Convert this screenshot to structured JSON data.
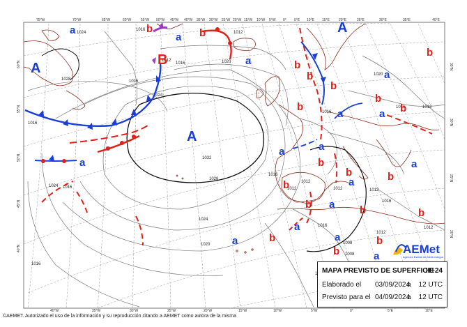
{
  "legend": {
    "title": "MAPA PREVISTO DE SUPERFICIE",
    "step": "H+24",
    "elaborated_label": "Elaborado el",
    "elaborated_date": "03/09/2024",
    "elaborated_sep": "a",
    "elaborated_time": "12 UTC",
    "valid_label": "Previsto para el",
    "valid_date": "04/09/2024",
    "valid_sep": "a",
    "valid_time": "12 UTC"
  },
  "logo": {
    "name": "AEMet",
    "subtitle": "Agencia Estatal de Meteorología"
  },
  "footer": "©AEMET. Autorizado el uso de la información y su reproducción citando a AEMET como autora de la misma",
  "longitudes_top": [
    "75°W",
    "70°W",
    "65°W",
    "60°W",
    "55°W",
    "50°W",
    "45°W",
    "40°W",
    "35°W",
    "30°W",
    "25°W",
    "20°W",
    "15°W",
    "10°W",
    "5°W",
    "0°",
    "5°E",
    "10°E",
    "15°E",
    "20°E",
    "25°E",
    "30°E",
    "35°E",
    "40°E"
  ],
  "longitudes_bottom": [
    "40°W",
    "35°W",
    "30°W",
    "25°W",
    "20°W",
    "15°W",
    "10°W",
    "5°W",
    "0°",
    "5°E",
    "10°E"
  ],
  "latitudes": [
    "60°N",
    "55°N",
    "50°N",
    "45°N",
    "40°N",
    "35°N",
    "30°N",
    "25°N",
    "20°N"
  ],
  "isobars": [
    "1024",
    "1016",
    "1012",
    "1012",
    "1016",
    "1016",
    "1020",
    "1024",
    "1028",
    "1032",
    "1028",
    "1024",
    "1016",
    "1016",
    "1012",
    "1012",
    "1012",
    "1012",
    "1016",
    "1012",
    "1016",
    "1020",
    "1016",
    "1012",
    "1008",
    "1008",
    "1016",
    "1012",
    "1024",
    "1016",
    "1020",
    "1016",
    "1012"
  ],
  "high_main": "A",
  "pressure_labels": [
    {
      "t": "A",
      "k": "high"
    },
    {
      "t": "A",
      "k": "high"
    },
    {
      "t": "B",
      "k": "low"
    },
    {
      "t": "a",
      "k": "high"
    },
    {
      "t": "a",
      "k": "high"
    },
    {
      "t": "a",
      "k": "high"
    },
    {
      "t": "a",
      "k": "high"
    },
    {
      "t": "a",
      "k": "high"
    },
    {
      "t": "a",
      "k": "high"
    },
    {
      "t": "a",
      "k": "high"
    },
    {
      "t": "a",
      "k": "high"
    },
    {
      "t": "a",
      "k": "high"
    },
    {
      "t": "a",
      "k": "high"
    },
    {
      "t": "a",
      "k": "high"
    },
    {
      "t": "a",
      "k": "high"
    },
    {
      "t": "a",
      "k": "high"
    },
    {
      "t": "a",
      "k": "high"
    },
    {
      "t": "a",
      "k": "high"
    },
    {
      "t": "a",
      "k": "high"
    },
    {
      "t": "b",
      "k": "low"
    },
    {
      "t": "b",
      "k": "low"
    },
    {
      "t": "b",
      "k": "low"
    },
    {
      "t": "b",
      "k": "low"
    },
    {
      "t": "b",
      "k": "low"
    },
    {
      "t": "b",
      "k": "low"
    },
    {
      "t": "b",
      "k": "low"
    },
    {
      "t": "b",
      "k": "low"
    },
    {
      "t": "b",
      "k": "low"
    },
    {
      "t": "b",
      "k": "low"
    },
    {
      "t": "b",
      "k": "low"
    },
    {
      "t": "b",
      "k": "low"
    },
    {
      "t": "b",
      "k": "low"
    },
    {
      "t": "b",
      "k": "low"
    },
    {
      "t": "b",
      "k": "low"
    },
    {
      "t": "b",
      "k": "low"
    },
    {
      "t": "b",
      "k": "low"
    },
    {
      "t": "b",
      "k": "low"
    },
    {
      "t": "b",
      "k": "low"
    }
  ],
  "colors": {
    "high": "#1a3fd6",
    "low": "#e0201a",
    "cold_front": "#1a3fd6",
    "warm_front": "#e0201a",
    "occluded": "#9b39c9"
  }
}
